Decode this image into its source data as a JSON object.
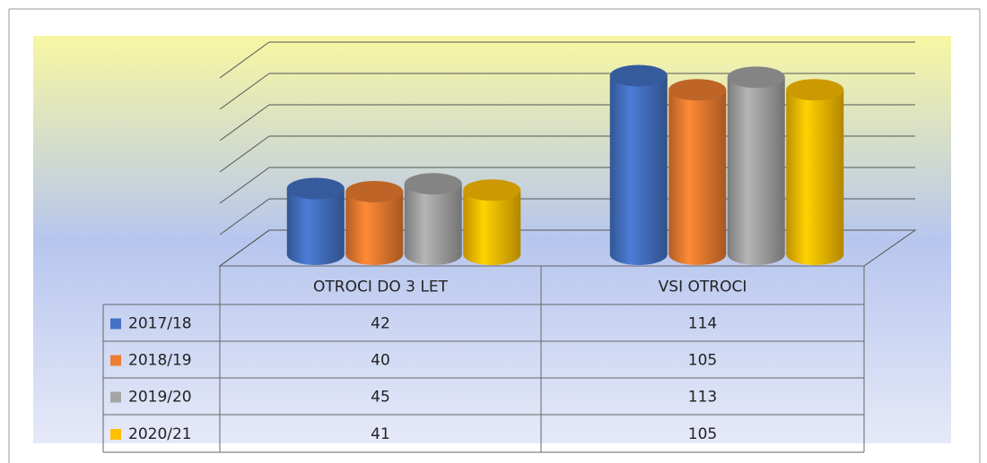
{
  "chart_data": {
    "type": "bar3d",
    "categories": [
      "OTROCI DO 3 LET",
      "VSI OTROCI"
    ],
    "series": [
      {
        "name": "2017/18",
        "color": "#4472c4",
        "values": [
          42,
          114
        ]
      },
      {
        "name": "2018/19",
        "color": "#ed7d31",
        "values": [
          40,
          105
        ]
      },
      {
        "name": "2019/20",
        "color": "#a5a5a5",
        "values": [
          45,
          113
        ]
      },
      {
        "name": "2020/21",
        "color": "#ffc000",
        "values": [
          41,
          105
        ]
      }
    ],
    "ylim": [
      0,
      120
    ],
    "yticks": [
      0,
      20,
      40,
      60,
      80,
      100,
      120
    ],
    "grid": true
  }
}
